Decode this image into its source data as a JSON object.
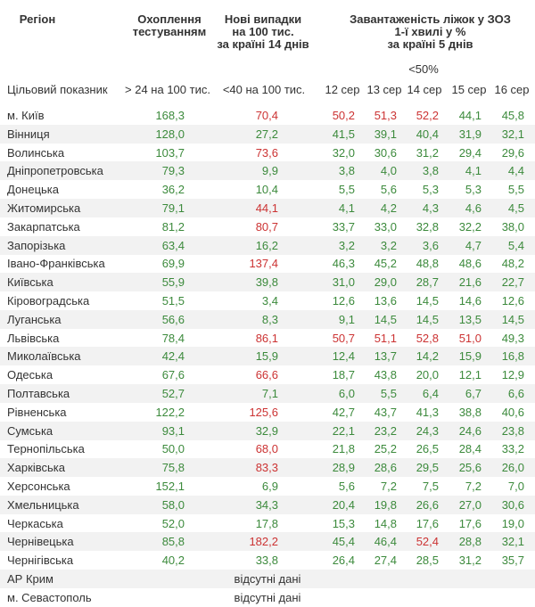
{
  "headers": {
    "region": "Регіон",
    "testing": [
      "Охоплення",
      "тестуванням"
    ],
    "cases": [
      "Нові випадки",
      "на 100 тис.",
      "за країні 14 днів"
    ],
    "beds": [
      "Завантаженість ліжок у ЗОЗ",
      "1-ї хвилі у %",
      "за країні 5 днів"
    ],
    "beds_target": "<50%",
    "target_label": "Цільовий показник",
    "testing_target": "> 24 на 100 тис.",
    "cases_target": "<40 на 100 тис.",
    "dates": [
      "12 сер",
      "13 сер",
      "14 сер",
      "15 сер",
      "16 сер"
    ]
  },
  "colors": {
    "green": "#3c8a3c",
    "red": "#cc3333",
    "row_alt": "#f2f2f2"
  },
  "rows": [
    {
      "region": "м. Київ",
      "testing": "168,3",
      "cases": "70,4",
      "beds": [
        "50,2",
        "51,3",
        "52,2",
        "44,1",
        "45,8"
      ],
      "cases_status": "red",
      "beds_status": [
        "red",
        "red",
        "red",
        "green",
        "green"
      ]
    },
    {
      "region": "Вінниця",
      "testing": "128,0",
      "cases": "27,2",
      "beds": [
        "41,5",
        "39,1",
        "40,4",
        "31,9",
        "32,1"
      ],
      "cases_status": "green",
      "beds_status": [
        "green",
        "green",
        "green",
        "green",
        "green"
      ]
    },
    {
      "region": "Волинська",
      "testing": "103,7",
      "cases": "73,6",
      "beds": [
        "32,0",
        "30,6",
        "31,2",
        "29,4",
        "29,6"
      ],
      "cases_status": "red",
      "beds_status": [
        "green",
        "green",
        "green",
        "green",
        "green"
      ]
    },
    {
      "region": "Дніпропетровська",
      "testing": "79,3",
      "cases": "9,9",
      "beds": [
        "3,8",
        "4,0",
        "3,8",
        "4,1",
        "4,4"
      ],
      "cases_status": "green",
      "beds_status": [
        "green",
        "green",
        "green",
        "green",
        "green"
      ]
    },
    {
      "region": "Донецька",
      "testing": "36,2",
      "cases": "10,4",
      "beds": [
        "5,5",
        "5,6",
        "5,3",
        "5,3",
        "5,5"
      ],
      "cases_status": "green",
      "beds_status": [
        "green",
        "green",
        "green",
        "green",
        "green"
      ]
    },
    {
      "region": "Житомирська",
      "testing": "79,1",
      "cases": "44,1",
      "beds": [
        "4,1",
        "4,2",
        "4,3",
        "4,6",
        "4,5"
      ],
      "cases_status": "red",
      "beds_status": [
        "green",
        "green",
        "green",
        "green",
        "green"
      ]
    },
    {
      "region": "Закарпатська",
      "testing": "81,2",
      "cases": "80,7",
      "beds": [
        "33,7",
        "33,0",
        "32,8",
        "32,2",
        "38,0"
      ],
      "cases_status": "red",
      "beds_status": [
        "green",
        "green",
        "green",
        "green",
        "green"
      ]
    },
    {
      "region": "Запорізька",
      "testing": "63,4",
      "cases": "16,2",
      "beds": [
        "3,2",
        "3,2",
        "3,6",
        "4,7",
        "5,4"
      ],
      "cases_status": "green",
      "beds_status": [
        "green",
        "green",
        "green",
        "green",
        "green"
      ]
    },
    {
      "region": "Івано-Франківська",
      "testing": "69,9",
      "cases": "137,4",
      "beds": [
        "46,3",
        "45,2",
        "48,8",
        "48,6",
        "48,2"
      ],
      "cases_status": "red",
      "beds_status": [
        "green",
        "green",
        "green",
        "green",
        "green"
      ]
    },
    {
      "region": "Київська",
      "testing": "55,9",
      "cases": "39,8",
      "beds": [
        "31,0",
        "29,0",
        "28,7",
        "21,6",
        "22,7"
      ],
      "cases_status": "green",
      "beds_status": [
        "green",
        "green",
        "green",
        "green",
        "green"
      ]
    },
    {
      "region": "Кіровоградська",
      "testing": "51,5",
      "cases": "3,4",
      "beds": [
        "12,6",
        "13,6",
        "14,5",
        "14,6",
        "12,6"
      ],
      "cases_status": "green",
      "beds_status": [
        "green",
        "green",
        "green",
        "green",
        "green"
      ]
    },
    {
      "region": "Луганська",
      "testing": "56,6",
      "cases": "8,3",
      "beds": [
        "9,1",
        "14,5",
        "14,5",
        "13,5",
        "14,5"
      ],
      "cases_status": "green",
      "beds_status": [
        "green",
        "green",
        "green",
        "green",
        "green"
      ]
    },
    {
      "region": "Львівська",
      "testing": "78,4",
      "cases": "86,1",
      "beds": [
        "50,7",
        "51,1",
        "52,8",
        "51,0",
        "49,3"
      ],
      "cases_status": "red",
      "beds_status": [
        "red",
        "red",
        "red",
        "red",
        "green"
      ]
    },
    {
      "region": "Миколаївська",
      "testing": "42,4",
      "cases": "15,9",
      "beds": [
        "12,4",
        "13,7",
        "14,2",
        "15,9",
        "16,8"
      ],
      "cases_status": "green",
      "beds_status": [
        "green",
        "green",
        "green",
        "green",
        "green"
      ]
    },
    {
      "region": "Одеська",
      "testing": "67,6",
      "cases": "66,6",
      "beds": [
        "18,7",
        "43,8",
        "20,0",
        "12,1",
        "12,9"
      ],
      "cases_status": "red",
      "beds_status": [
        "green",
        "green",
        "green",
        "green",
        "green"
      ]
    },
    {
      "region": "Полтавська",
      "testing": "52,7",
      "cases": "7,1",
      "beds": [
        "6,0",
        "5,5",
        "6,4",
        "6,7",
        "6,6"
      ],
      "cases_status": "green",
      "beds_status": [
        "green",
        "green",
        "green",
        "green",
        "green"
      ]
    },
    {
      "region": "Рівненська",
      "testing": "122,2",
      "cases": "125,6",
      "beds": [
        "42,7",
        "43,7",
        "41,3",
        "38,8",
        "40,6"
      ],
      "cases_status": "red",
      "beds_status": [
        "green",
        "green",
        "green",
        "green",
        "green"
      ]
    },
    {
      "region": "Сумська",
      "testing": "93,1",
      "cases": "32,9",
      "beds": [
        "22,1",
        "23,2",
        "24,3",
        "24,6",
        "23,8"
      ],
      "cases_status": "green",
      "beds_status": [
        "green",
        "green",
        "green",
        "green",
        "green"
      ]
    },
    {
      "region": "Тернопільська",
      "testing": "50,0",
      "cases": "68,0",
      "beds": [
        "21,8",
        "25,2",
        "26,5",
        "28,4",
        "33,2"
      ],
      "cases_status": "red",
      "beds_status": [
        "green",
        "green",
        "green",
        "green",
        "green"
      ]
    },
    {
      "region": "Харківська",
      "testing": "75,8",
      "cases": "83,3",
      "beds": [
        "28,9",
        "28,6",
        "29,5",
        "25,6",
        "26,0"
      ],
      "cases_status": "red",
      "beds_status": [
        "green",
        "green",
        "green",
        "green",
        "green"
      ]
    },
    {
      "region": "Херсонська",
      "testing": "152,1",
      "cases": "6,9",
      "beds": [
        "5,6",
        "7,2",
        "7,5",
        "7,2",
        "7,0"
      ],
      "cases_status": "green",
      "beds_status": [
        "green",
        "green",
        "green",
        "green",
        "green"
      ]
    },
    {
      "region": "Хмельницька",
      "testing": "58,0",
      "cases": "34,3",
      "beds": [
        "20,4",
        "19,8",
        "26,6",
        "27,0",
        "30,6"
      ],
      "cases_status": "green",
      "beds_status": [
        "green",
        "green",
        "green",
        "green",
        "green"
      ]
    },
    {
      "region": "Черкаська",
      "testing": "52,0",
      "cases": "17,8",
      "beds": [
        "15,3",
        "14,8",
        "17,6",
        "17,6",
        "19,0"
      ],
      "cases_status": "green",
      "beds_status": [
        "green",
        "green",
        "green",
        "green",
        "green"
      ]
    },
    {
      "region": "Чернівецька",
      "testing": "85,8",
      "cases": "182,2",
      "beds": [
        "45,4",
        "46,4",
        "52,4",
        "28,8",
        "32,1"
      ],
      "cases_status": "red",
      "beds_status": [
        "green",
        "green",
        "red",
        "green",
        "green"
      ]
    },
    {
      "region": "Чернігівська",
      "testing": "40,2",
      "cases": "33,8",
      "beds": [
        "26,4",
        "27,4",
        "28,5",
        "31,2",
        "35,7"
      ],
      "cases_status": "green",
      "beds_status": [
        "green",
        "green",
        "green",
        "green",
        "green"
      ]
    },
    {
      "region": "АР Крим",
      "missing": "відсутні дані"
    },
    {
      "region": "м. Севастополь",
      "missing": "відсутні дані"
    }
  ]
}
